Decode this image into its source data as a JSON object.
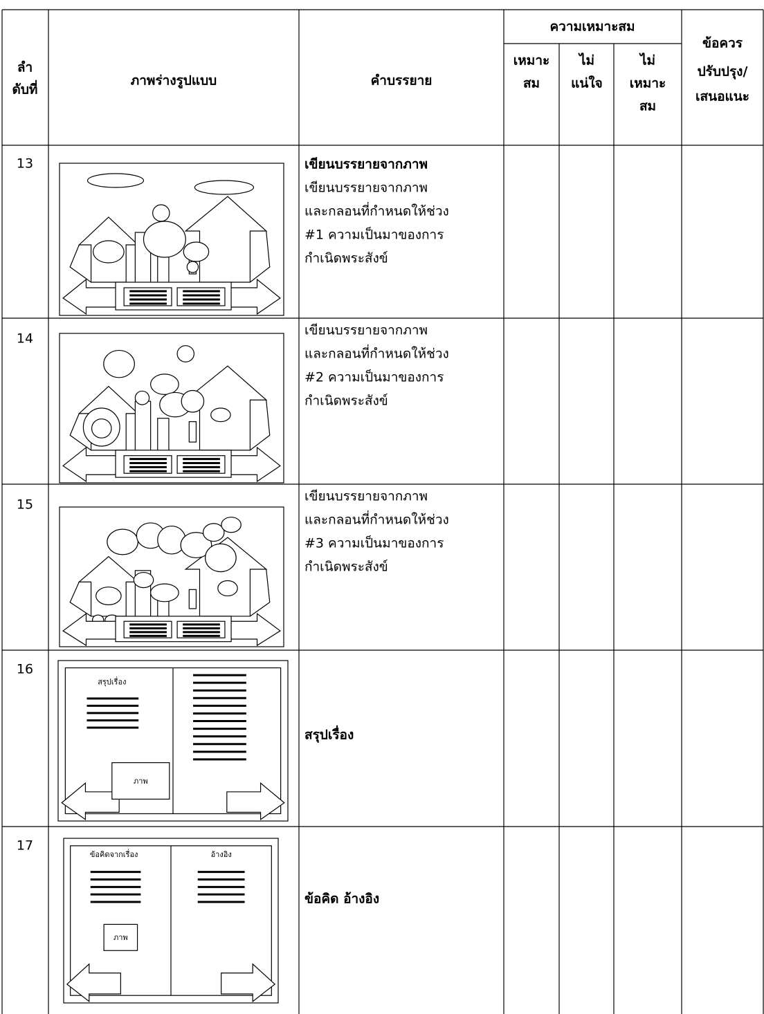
{
  "table": {
    "header": {
      "no": [
        "ลำ",
        "ดับที่"
      ],
      "sketch": "ภาพร่างรูปแบบ",
      "description": "คำบรรยาย",
      "suitability": "ความเหมาะสม",
      "suitable": [
        "เหมาะ",
        "สม"
      ],
      "unsure": [
        "ไม่",
        "แน่ใจ"
      ],
      "unsuitable": [
        "ไม่",
        "เหมาะ",
        "สม"
      ],
      "suggestions": [
        "ข้อควร",
        "ปรับปรุง/",
        "เสนอแนะ"
      ]
    },
    "rows": [
      {
        "no": "13",
        "title": "เขียนบรรยายจากภาพ",
        "lines": [
          "เขียนบรรยายจากภาพ",
          "และกลอนที่กำหนดให้ช่วง",
          "#1 ความเป็นมาของการ",
          "กำเนิดพระสังข์"
        ]
      },
      {
        "no": "14",
        "lines": [
          "เขียนบรรยายจากภาพ",
          "และกลอนที่กำหนดให้ช่วง",
          "#2 ความเป็นมาของการ",
          "กำเนิดพระสังข์"
        ]
      },
      {
        "no": "15",
        "lines": [
          "เขียนบรรยายจากภาพ",
          "และกลอนที่กำหนดให้ช่วง",
          "#3 ความเป็นมาของการ",
          "กำเนิดพระสังข์"
        ]
      },
      {
        "no": "16",
        "title": "สรุปเรื่อง",
        "sketch_labels": [
          "สรุปเรื่อง",
          "ภาพ"
        ]
      },
      {
        "no": "17",
        "title": "ข้อคิด อ้างอิง",
        "sketch_labels": [
          "ข้อคิดจากเรื่อง",
          "อ้างอิง",
          "ภาพ"
        ]
      }
    ]
  }
}
